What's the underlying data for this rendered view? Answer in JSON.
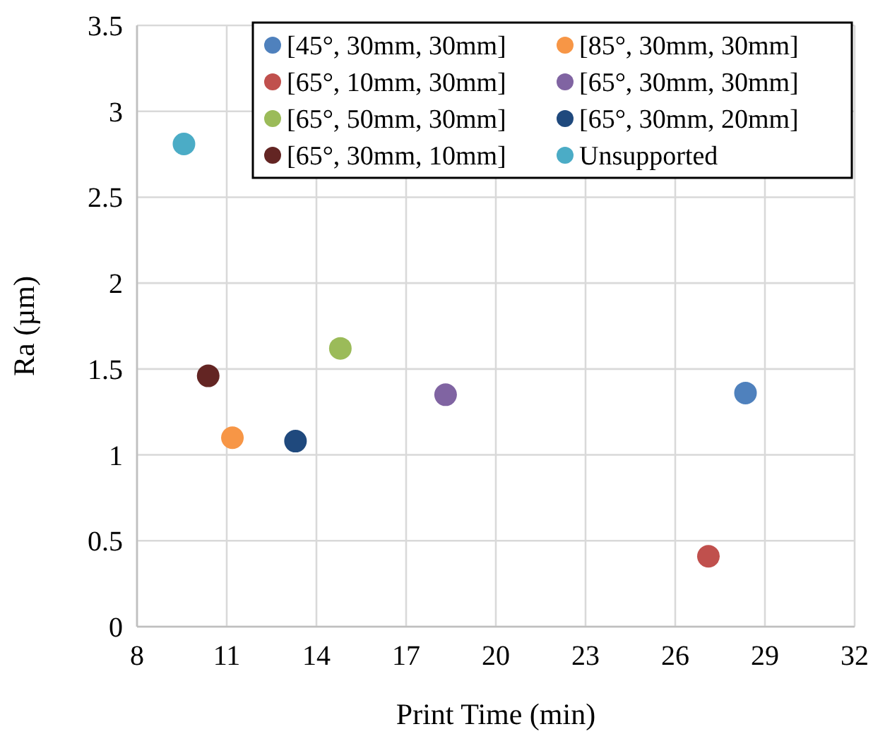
{
  "chart_data": {
    "type": "scatter",
    "xlabel": "Print Time (min)",
    "ylabel": "Ra (µm)",
    "xlim": [
      8,
      32
    ],
    "xticks": [
      8,
      11,
      14,
      17,
      20,
      23,
      26,
      29,
      32
    ],
    "ylim": [
      0,
      3.5
    ],
    "yticks": [
      0,
      0.5,
      1,
      1.5,
      2,
      2.5,
      3,
      3.5
    ],
    "grid": true,
    "legend": "top right",
    "marker": "circle",
    "series": [
      {
        "name": "[45°, 30mm, 30mm]",
        "color": "#4f81bd",
        "x": [
          28.35
        ],
        "values": [
          1.36
        ]
      },
      {
        "name": "[85°, 30mm, 30mm]",
        "color": "#f79646",
        "x": [
          11.19
        ],
        "values": [
          1.1
        ]
      },
      {
        "name": "[65°, 10mm, 30mm]",
        "color": "#c0504d",
        "x": [
          27.11
        ],
        "values": [
          0.41
        ]
      },
      {
        "name": "[65°, 30mm, 30mm]",
        "color": "#8064a2",
        "x": [
          18.32
        ],
        "values": [
          1.35
        ]
      },
      {
        "name": "[65°, 50mm, 30mm]",
        "color": "#9bbb59",
        "x": [
          14.8
        ],
        "values": [
          1.62
        ]
      },
      {
        "name": "[65°, 30mm, 20mm]",
        "color": "#1f497d",
        "x": [
          13.3
        ],
        "values": [
          1.08
        ]
      },
      {
        "name": "[65°, 30mm, 10mm]",
        "color": "#632523",
        "x": [
          10.38
        ],
        "values": [
          1.46
        ]
      },
      {
        "name": "Unsupported",
        "color": "#4bacc6",
        "x": [
          9.57
        ],
        "values": [
          2.81
        ]
      }
    ]
  }
}
